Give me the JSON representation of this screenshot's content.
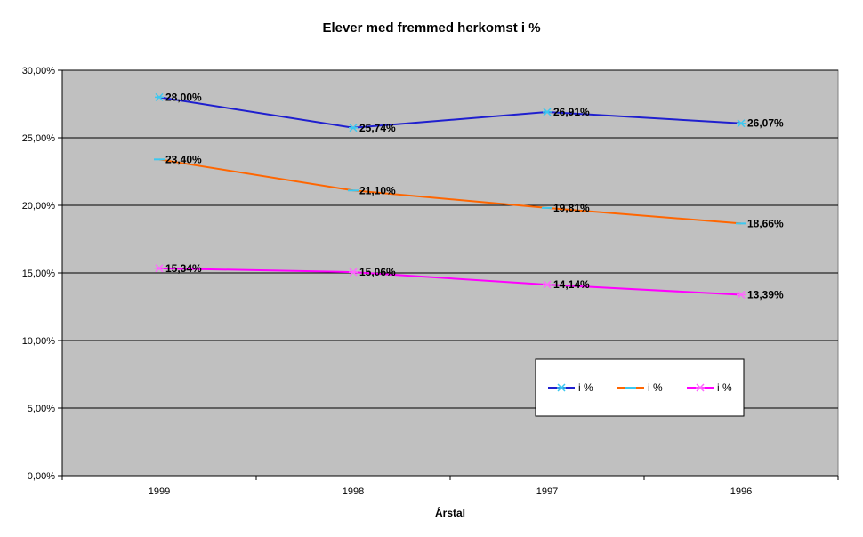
{
  "chart_data": {
    "type": "line",
    "title": "Elever med fremmed herkomst i %",
    "xlabel": "Årstal",
    "ylabel": "",
    "categories": [
      "1999",
      "1998",
      "1997",
      "1996"
    ],
    "ylim": [
      0,
      30
    ],
    "yticks": [
      "0,00%",
      "5,00%",
      "10,00%",
      "15,00%",
      "20,00%",
      "25,00%",
      "30,00%"
    ],
    "ytick_values": [
      0,
      5,
      10,
      15,
      20,
      25,
      30
    ],
    "grid": true,
    "plot_background": "#c0c0c0",
    "legend_position": "lower-right",
    "series": [
      {
        "name": "i %",
        "color": "#1f1fcf",
        "marker": "star",
        "marker_color": "#3cc8f0",
        "values": [
          28.0,
          25.74,
          26.91,
          26.07
        ],
        "labels": [
          "28,00%",
          "25,74%",
          "26,91%",
          "26,07%"
        ]
      },
      {
        "name": "i %",
        "color": "#ff6600",
        "marker": "dash",
        "marker_color": "#3cc8f0",
        "values": [
          23.4,
          21.1,
          19.81,
          18.66
        ],
        "labels": [
          "23,40%",
          "21,10%",
          "19,81%",
          "18,66%"
        ]
      },
      {
        "name": "i %",
        "color": "#ff00ff",
        "marker": "star",
        "marker_color": "#ff66ff",
        "values": [
          15.34,
          15.06,
          14.14,
          13.39
        ],
        "labels": [
          "15,34%",
          "15,06%",
          "14,14%",
          "13,39%"
        ]
      }
    ]
  }
}
